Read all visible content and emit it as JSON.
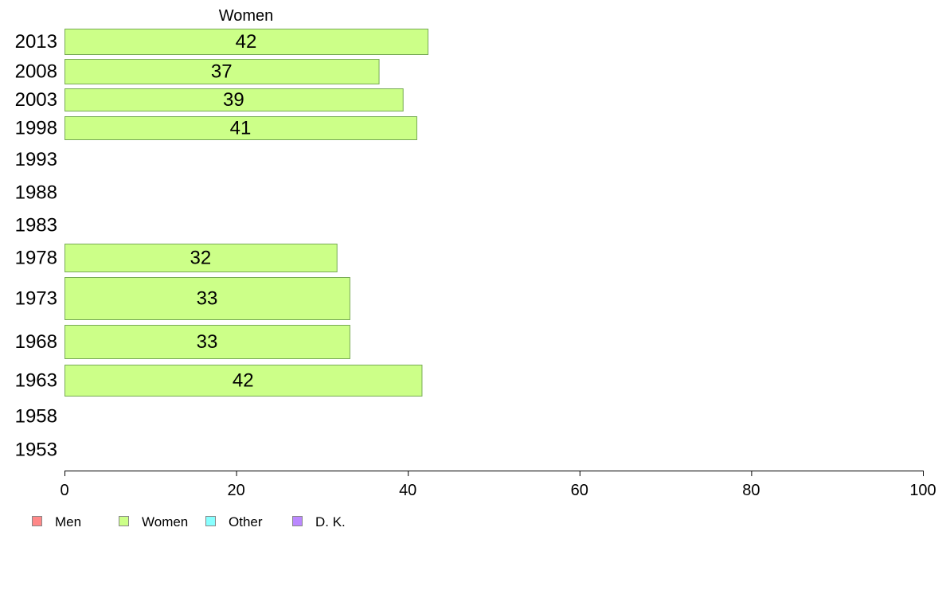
{
  "chart_data": {
    "type": "bar",
    "orientation": "horizontal",
    "title": "Women",
    "categories": [
      "2013",
      "2008",
      "2003",
      "1998",
      "1993",
      "1988",
      "1983",
      "1978",
      "1973",
      "1968",
      "1963",
      "1958",
      "1953"
    ],
    "series": [
      {
        "name": "Women",
        "values": [
          42,
          37,
          39,
          41,
          null,
          null,
          null,
          32,
          33,
          33,
          42,
          null,
          null
        ],
        "precise_values": [
          42.3,
          36.6,
          39.4,
          41.0,
          null,
          null,
          null,
          31.7,
          33.2,
          33.2,
          41.6,
          null,
          null
        ],
        "color": "#ccff88"
      }
    ],
    "xlim": [
      0,
      100
    ],
    "xticks": [
      0,
      20,
      40,
      60,
      80,
      100
    ],
    "legend": {
      "placement": "bottom-left",
      "entries": [
        {
          "label": "Men",
          "color": "#ff8888"
        },
        {
          "label": "Women",
          "color": "#ccff88"
        },
        {
          "label": "Other",
          "color": "#88ffff"
        },
        {
          "label": "D. K.",
          "color": "#bb88ff"
        }
      ]
    },
    "grid": false,
    "bar_stroke_color": "#77aa55",
    "axis_color": "#000000"
  }
}
